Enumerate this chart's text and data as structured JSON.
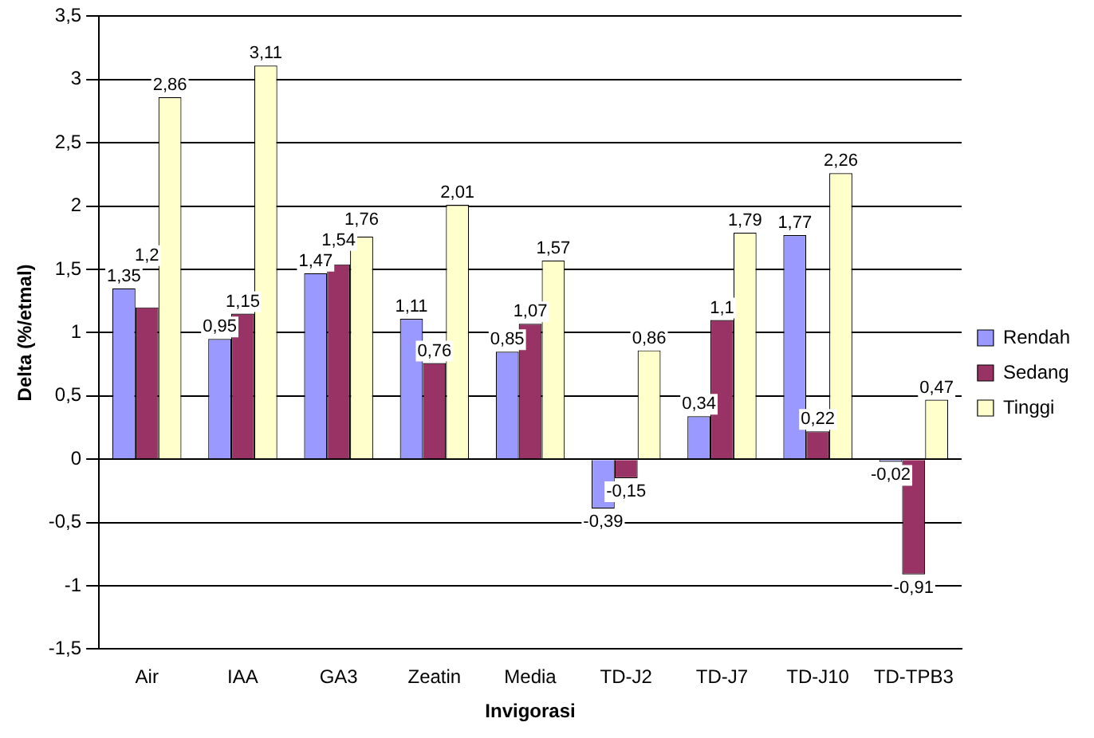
{
  "chart_data": {
    "type": "bar",
    "xlabel": "Invigorasi",
    "ylabel": "Delta (%/etmal)",
    "categories": [
      "Air",
      "IAA",
      "GA3",
      "Zeatin",
      "Media",
      "TD-J2",
      "TD-J7",
      "TD-J10",
      "TD-TPB3"
    ],
    "series": [
      {
        "name": "Rendah",
        "color": "#9999ff",
        "values": [
          1.35,
          0.95,
          1.47,
          1.11,
          0.85,
          -0.39,
          0.34,
          1.77,
          -0.02
        ],
        "value_labels": [
          "1,35",
          "0,95",
          "1,47",
          "1,11",
          "0,85",
          "-0,39",
          "0,34",
          "1,77",
          "-0,02"
        ]
      },
      {
        "name": "Sedang",
        "color": "#993366",
        "values": [
          1.2,
          1.15,
          1.54,
          0.76,
          1.07,
          -0.15,
          1.1,
          0.22,
          -0.91
        ],
        "value_labels": [
          "1,2",
          "1,15",
          "1,54",
          "0,76",
          "1,07",
          "-0,15",
          "1,1",
          "0,22",
          "-0,91"
        ]
      },
      {
        "name": "Tinggi",
        "color": "#ffffcc",
        "values": [
          2.86,
          3.11,
          1.76,
          2.01,
          1.57,
          0.86,
          1.79,
          2.26,
          0.47
        ],
        "value_labels": [
          "2,86",
          "3,11",
          "1,76",
          "2,01",
          "1,57",
          "0,86",
          "1,79",
          "2,26",
          "0,47"
        ]
      }
    ],
    "ylim": [
      -1.5,
      3.5
    ],
    "yticks": [
      {
        "value": -1.5,
        "label": "-1,5"
      },
      {
        "value": -1,
        "label": "-1"
      },
      {
        "value": -0.5,
        "label": "-0,5"
      },
      {
        "value": 0,
        "label": "0"
      },
      {
        "value": 0.5,
        "label": "0,5"
      },
      {
        "value": 1,
        "label": "1"
      },
      {
        "value": 1.5,
        "label": "1,5"
      },
      {
        "value": 2,
        "label": "2"
      },
      {
        "value": 2.5,
        "label": "2,5"
      },
      {
        "value": 3,
        "label": "3"
      },
      {
        "value": 3.5,
        "label": "3,5"
      }
    ],
    "grid": "y",
    "legend": "right"
  }
}
